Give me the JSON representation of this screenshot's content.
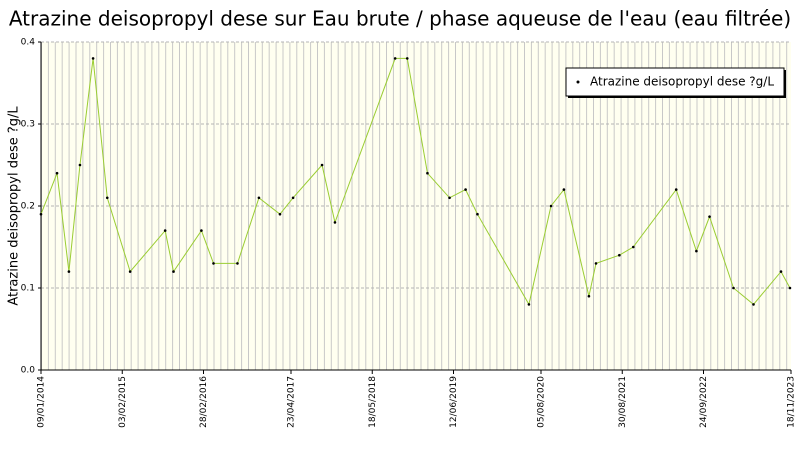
{
  "chart_data": {
    "type": "line",
    "title": "Atrazine deisopropyl dese sur Eau brute / phase aqueuse de l'eau (eau filtrée)",
    "y_label": "Atrazine deisopropyl dese ?g/L",
    "x": [
      "09/01/2014",
      "27/03/2014",
      "23/05/2014",
      "15/07/2014",
      "16/09/2014",
      "23/11/2014",
      "13/03/2015",
      "28/08/2015",
      "07/10/2015",
      "18/02/2016",
      "16/04/2016",
      "09/08/2016",
      "20/11/2016",
      "01/03/2017",
      "03/05/2017",
      "19/09/2017",
      "20/11/2017",
      "05/09/2018",
      "02/11/2018",
      "07/02/2019",
      "24/05/2019",
      "09/08/2019",
      "05/10/2019",
      "08/06/2020",
      "22/09/2020",
      "23/11/2020",
      "23/03/2021",
      "26/04/2021",
      "16/08/2021",
      "22/10/2021",
      "16/05/2022",
      "21/08/2022",
      "23/10/2022",
      "15/02/2023",
      "22/05/2023",
      "01/10/2023",
      "13/11/2023"
    ],
    "series": [
      {
        "name": "Atrazine deisopropyl dese ?g/L",
        "color": "#9acd32",
        "marker_color": "#000000",
        "values": [
          0.19,
          0.24,
          0.12,
          0.25,
          0.38,
          0.21,
          0.12,
          0.17,
          0.12,
          0.17,
          0.13,
          0.13,
          0.21,
          0.19,
          0.21,
          0.25,
          0.18,
          0.38,
          0.38,
          0.24,
          0.21,
          0.22,
          0.19,
          0.08,
          0.2,
          0.22,
          0.09,
          0.13,
          0.14,
          0.15,
          0.22,
          0.145,
          0.187,
          0.1,
          0.08,
          0.12,
          0.1
        ]
      }
    ],
    "xlim": [
      "09/01/2014",
      "18/11/2023"
    ],
    "xticks": [
      "09/01/2014",
      "03/02/2015",
      "28/02/2016",
      "23/04/2017",
      "18/05/2018",
      "12/06/2019",
      "05/08/2020",
      "30/08/2021",
      "24/09/2022",
      "18/11/2023"
    ],
    "ylim": [
      0,
      0.4
    ],
    "yticks": [
      {
        "value": 0,
        "label": "0.0"
      },
      0.1,
      0.2,
      0.3,
      0.4
    ],
    "grid": true,
    "legend_position": "upper right"
  }
}
